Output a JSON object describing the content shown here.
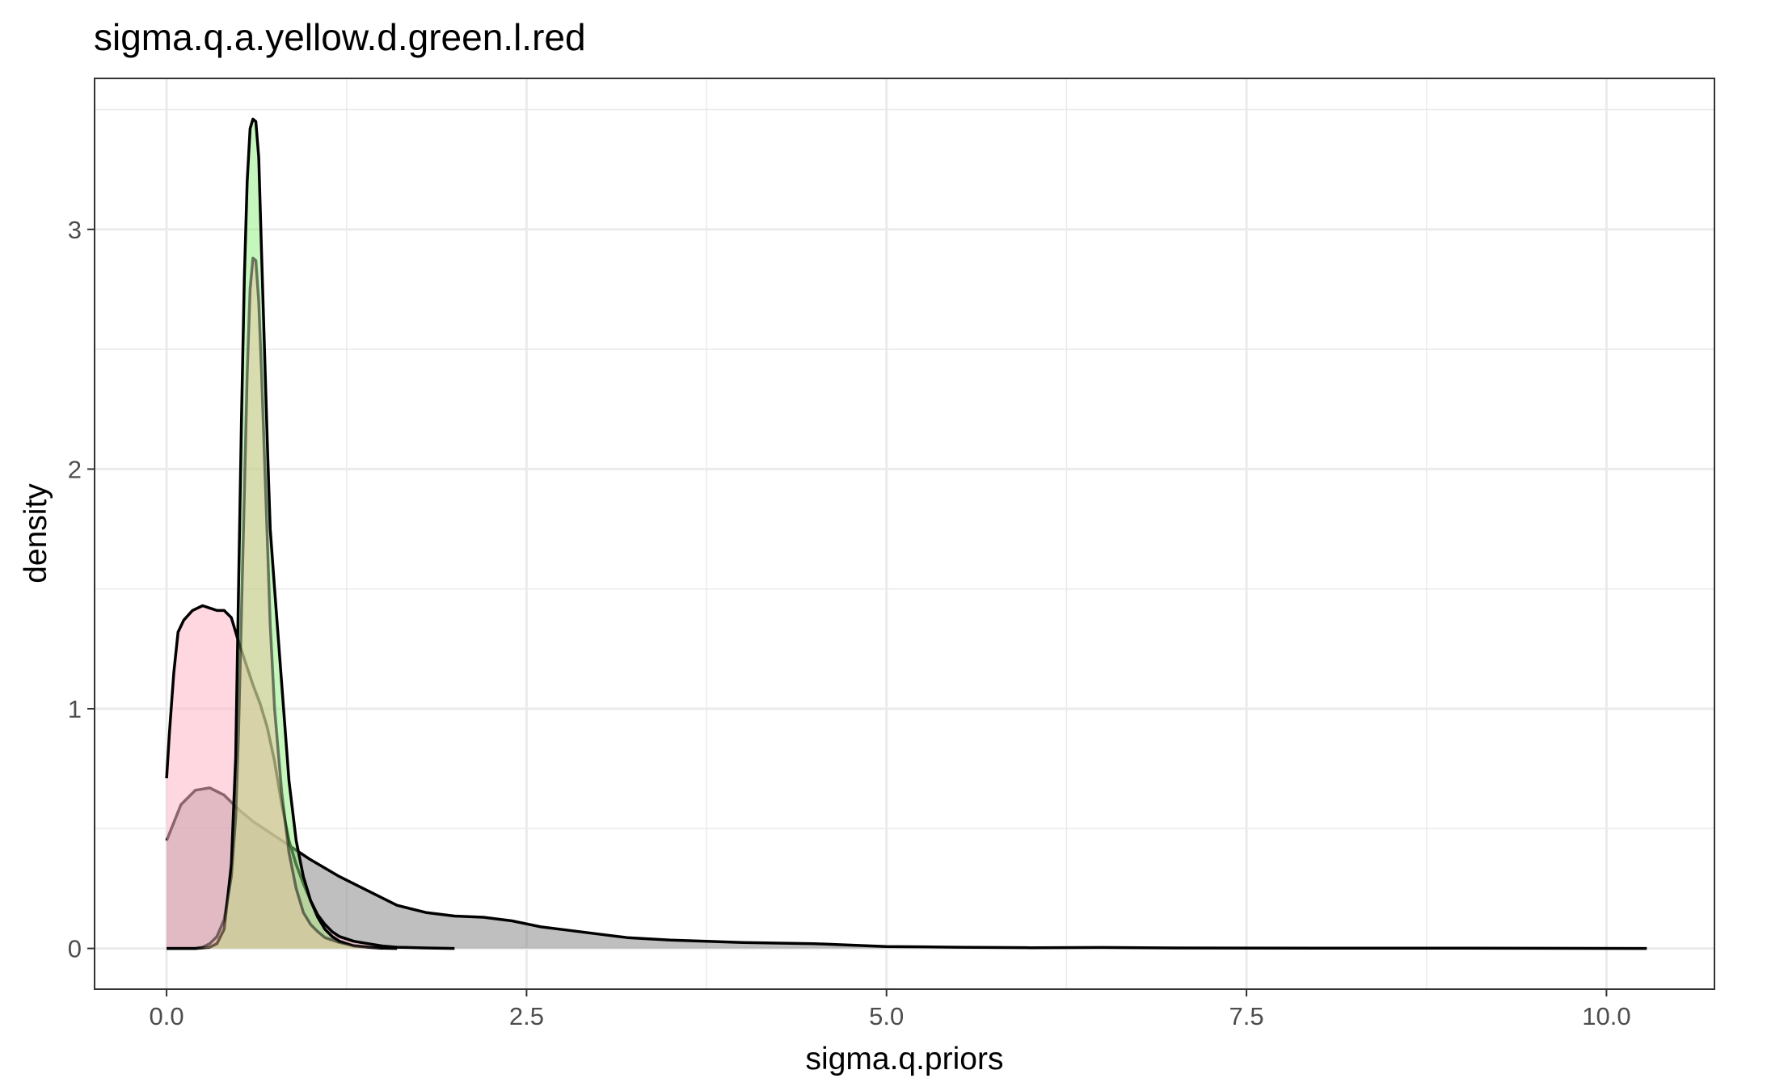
{
  "chart_data": {
    "type": "area",
    "title": "sigma.q.a.yellow.d.green.l.red",
    "xlabel": "sigma.q.priors",
    "ylabel": "density",
    "xlim": [
      -0.5,
      10.75
    ],
    "ylim": [
      -0.17,
      3.63
    ],
    "x_ticks": [
      0.0,
      2.5,
      5.0,
      7.5,
      10.0
    ],
    "x_tick_labels": [
      "0.0",
      "2.5",
      "5.0",
      "7.5",
      "10.0"
    ],
    "y_ticks": [
      0,
      1,
      2,
      3
    ],
    "y_tick_labels": [
      "0",
      "1",
      "2",
      "3"
    ],
    "grid": true,
    "legend": "none",
    "series": [
      {
        "fill": "#7f7f7f",
        "fill_opacity": 0.5,
        "line": "#000000",
        "line_opacity": 1,
        "points": [
          [
            0,
            0.45
          ],
          [
            0.1,
            0.6
          ],
          [
            0.2,
            0.66
          ],
          [
            0.3,
            0.67
          ],
          [
            0.4,
            0.64
          ],
          [
            0.5,
            0.58
          ],
          [
            0.6,
            0.53
          ],
          [
            0.7,
            0.49
          ],
          [
            0.8,
            0.45
          ],
          [
            0.9,
            0.41
          ],
          [
            1.0,
            0.37
          ],
          [
            1.2,
            0.3
          ],
          [
            1.4,
            0.24
          ],
          [
            1.6,
            0.18
          ],
          [
            1.8,
            0.15
          ],
          [
            2.0,
            0.135
          ],
          [
            2.2,
            0.13
          ],
          [
            2.4,
            0.115
          ],
          [
            2.6,
            0.09
          ],
          [
            2.8,
            0.075
          ],
          [
            3.0,
            0.06
          ],
          [
            3.2,
            0.045
          ],
          [
            3.5,
            0.035
          ],
          [
            4.0,
            0.025
          ],
          [
            4.5,
            0.02
          ],
          [
            4.7,
            0.015
          ],
          [
            5.0,
            0.008
          ],
          [
            5.5,
            0.005
          ],
          [
            6.0,
            0.003
          ],
          [
            6.5,
            0.004
          ],
          [
            7.0,
            0.002
          ],
          [
            8.0,
            0.001
          ],
          [
            9.0,
            0.001
          ],
          [
            10.28,
            0.0
          ]
        ]
      },
      {
        "fill": "#ffb6c8",
        "fill_opacity": 0.55,
        "line": "#000000",
        "line_opacity": 1,
        "points": [
          [
            0,
            0.71
          ],
          [
            0.02,
            0.9
          ],
          [
            0.05,
            1.15
          ],
          [
            0.08,
            1.32
          ],
          [
            0.12,
            1.37
          ],
          [
            0.18,
            1.41
          ],
          [
            0.25,
            1.43
          ],
          [
            0.3,
            1.42
          ],
          [
            0.35,
            1.41
          ],
          [
            0.4,
            1.41
          ],
          [
            0.45,
            1.38
          ],
          [
            0.5,
            1.28
          ],
          [
            0.55,
            1.19
          ],
          [
            0.6,
            1.1
          ],
          [
            0.65,
            1.02
          ],
          [
            0.7,
            0.92
          ],
          [
            0.75,
            0.78
          ],
          [
            0.8,
            0.6
          ],
          [
            0.85,
            0.45
          ],
          [
            0.9,
            0.35
          ],
          [
            0.95,
            0.27
          ],
          [
            1.0,
            0.2
          ],
          [
            1.05,
            0.14
          ],
          [
            1.1,
            0.1
          ],
          [
            1.15,
            0.07
          ],
          [
            1.2,
            0.05
          ],
          [
            1.3,
            0.03
          ],
          [
            1.4,
            0.02
          ],
          [
            1.5,
            0.01
          ],
          [
            1.6,
            0.005
          ],
          [
            1.8,
            0.002
          ],
          [
            2.0,
            0.0
          ]
        ]
      },
      {
        "fill": "#8cee7a",
        "fill_opacity": 0.5,
        "line": "#000000",
        "line_opacity": 1,
        "points": [
          [
            0.0,
            0.0
          ],
          [
            0.2,
            0.0
          ],
          [
            0.3,
            0.005
          ],
          [
            0.35,
            0.02
          ],
          [
            0.4,
            0.08
          ],
          [
            0.45,
            0.35
          ],
          [
            0.48,
            0.8
          ],
          [
            0.5,
            1.5
          ],
          [
            0.52,
            2.2
          ],
          [
            0.54,
            2.8
          ],
          [
            0.56,
            3.2
          ],
          [
            0.58,
            3.42
          ],
          [
            0.6,
            3.46
          ],
          [
            0.62,
            3.45
          ],
          [
            0.64,
            3.3
          ],
          [
            0.66,
            2.9
          ],
          [
            0.68,
            2.5
          ],
          [
            0.7,
            2.1
          ],
          [
            0.72,
            1.75
          ],
          [
            0.75,
            1.5
          ],
          [
            0.8,
            1.1
          ],
          [
            0.85,
            0.7
          ],
          [
            0.9,
            0.45
          ],
          [
            0.95,
            0.3
          ],
          [
            1.0,
            0.2
          ],
          [
            1.05,
            0.13
          ],
          [
            1.1,
            0.08
          ],
          [
            1.15,
            0.05
          ],
          [
            1.2,
            0.03
          ],
          [
            1.3,
            0.01
          ],
          [
            1.4,
            0.005
          ],
          [
            1.5,
            0.001
          ],
          [
            1.6,
            0.0
          ]
        ]
      },
      {
        "fill": "#eebf9f",
        "fill_opacity": 0.45,
        "line": "#000000",
        "line_opacity": 0.5,
        "points": [
          [
            0.0,
            0.0
          ],
          [
            0.2,
            0.0
          ],
          [
            0.25,
            0.005
          ],
          [
            0.3,
            0.02
          ],
          [
            0.35,
            0.05
          ],
          [
            0.4,
            0.12
          ],
          [
            0.45,
            0.3
          ],
          [
            0.48,
            0.55
          ],
          [
            0.5,
            0.9
          ],
          [
            0.52,
            1.4
          ],
          [
            0.54,
            1.9
          ],
          [
            0.56,
            2.4
          ],
          [
            0.58,
            2.75
          ],
          [
            0.6,
            2.88
          ],
          [
            0.62,
            2.87
          ],
          [
            0.64,
            2.7
          ],
          [
            0.66,
            2.4
          ],
          [
            0.68,
            2.05
          ],
          [
            0.7,
            1.7
          ],
          [
            0.72,
            1.35
          ],
          [
            0.75,
            1.0
          ],
          [
            0.8,
            0.65
          ],
          [
            0.85,
            0.4
          ],
          [
            0.9,
            0.25
          ],
          [
            0.95,
            0.15
          ],
          [
            1.0,
            0.1
          ],
          [
            1.05,
            0.07
          ],
          [
            1.1,
            0.045
          ],
          [
            1.2,
            0.025
          ],
          [
            1.3,
            0.012
          ],
          [
            1.4,
            0.005
          ],
          [
            1.5,
            0.0
          ]
        ]
      }
    ]
  }
}
